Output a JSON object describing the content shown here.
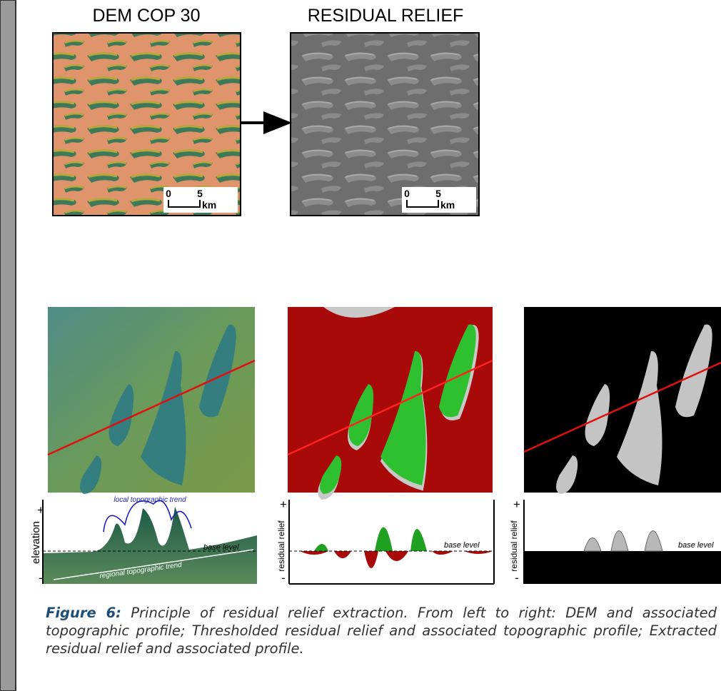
{
  "figure": {
    "top_panels": [
      {
        "title": "DEM COP 30",
        "scale": {
          "start": "0",
          "end": "5",
          "unit": "km"
        }
      },
      {
        "title": "RESIDUAL RELIEF",
        "scale": {
          "start": "0",
          "end": "5",
          "unit": "km"
        }
      }
    ],
    "profiles": [
      {
        "axis_label": "elevation",
        "plus": "+",
        "minus": "-",
        "local_trend": "local topographic trend",
        "base_level": "base level",
        "regional_trend": "regional topographic trend"
      },
      {
        "axis_label": "residual relief",
        "plus": "+",
        "minus": "-",
        "base_level": "base level"
      },
      {
        "axis_label": "residual relief",
        "plus": "+",
        "minus": "-",
        "base_level": "base level"
      }
    ],
    "caption": {
      "label": "Figure 6:",
      "text": "Principle of residual relief extraction. From left to right: DEM and associated topographic profile; Thresholded residual relief and associated topographic profile; Extracted residual relief and associated profile."
    }
  }
}
